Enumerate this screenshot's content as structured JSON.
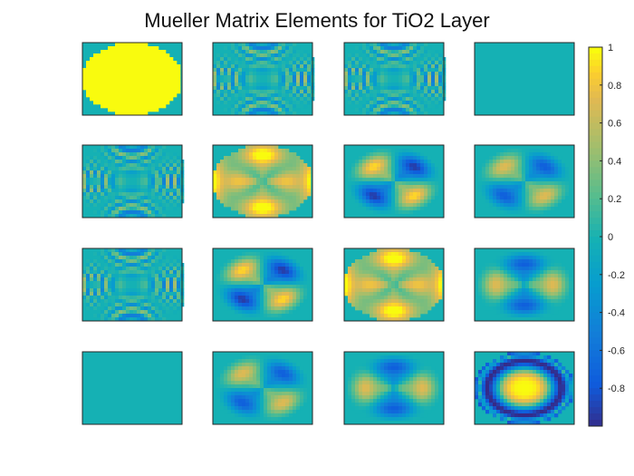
{
  "chart_data": {
    "type": "heatmap",
    "title": "Mueller Matrix Elements for TiO2 Layer",
    "grid": [
      4,
      4
    ],
    "colormap": "parula",
    "clim": [
      -1,
      1
    ],
    "colorbar": {
      "location": "right",
      "tick_labels": [
        "1",
        "0.8",
        "0.6",
        "0.4",
        "0.2",
        "0",
        "-0.2",
        "-0.4",
        "-0.6",
        "-0.8"
      ],
      "tick_values": [
        1,
        0.8,
        0.6,
        0.4,
        0.2,
        0,
        -0.2,
        -0.4,
        -0.6,
        -0.8
      ]
    },
    "panels": [
      {
        "element": "M11",
        "pattern": "uniform-disk",
        "value_inside": 1.0,
        "value_outside": 0
      },
      {
        "element": "M12",
        "pattern": "rings",
        "amplitude": 0.5
      },
      {
        "element": "M13",
        "pattern": "rings",
        "amplitude": 0.5
      },
      {
        "element": "M14",
        "pattern": "zero",
        "value": 0
      },
      {
        "element": "M21",
        "pattern": "rings",
        "amplitude": 0.5
      },
      {
        "element": "M22",
        "pattern": "quad-cos2",
        "amplitude": 1.0
      },
      {
        "element": "M23",
        "pattern": "quad-sin2",
        "amplitude": 1.0
      },
      {
        "element": "M24",
        "pattern": "quad-sin2",
        "amplitude": 0.8
      },
      {
        "element": "M31",
        "pattern": "rings",
        "amplitude": 0.5
      },
      {
        "element": "M32",
        "pattern": "quad-sin2",
        "amplitude": 1.0
      },
      {
        "element": "M33",
        "pattern": "quad-cos2",
        "amplitude": 1.0
      },
      {
        "element": "M34",
        "pattern": "quad-cos2-neg",
        "amplitude": 0.8
      },
      {
        "element": "M41",
        "pattern": "zero",
        "value": 0
      },
      {
        "element": "M42",
        "pattern": "quad-sin2",
        "amplitude": 0.8
      },
      {
        "element": "M43",
        "pattern": "quad-cos2-neg",
        "amplitude": 0.8
      },
      {
        "element": "M44",
        "pattern": "radial",
        "amplitude": 1.0
      }
    ]
  }
}
